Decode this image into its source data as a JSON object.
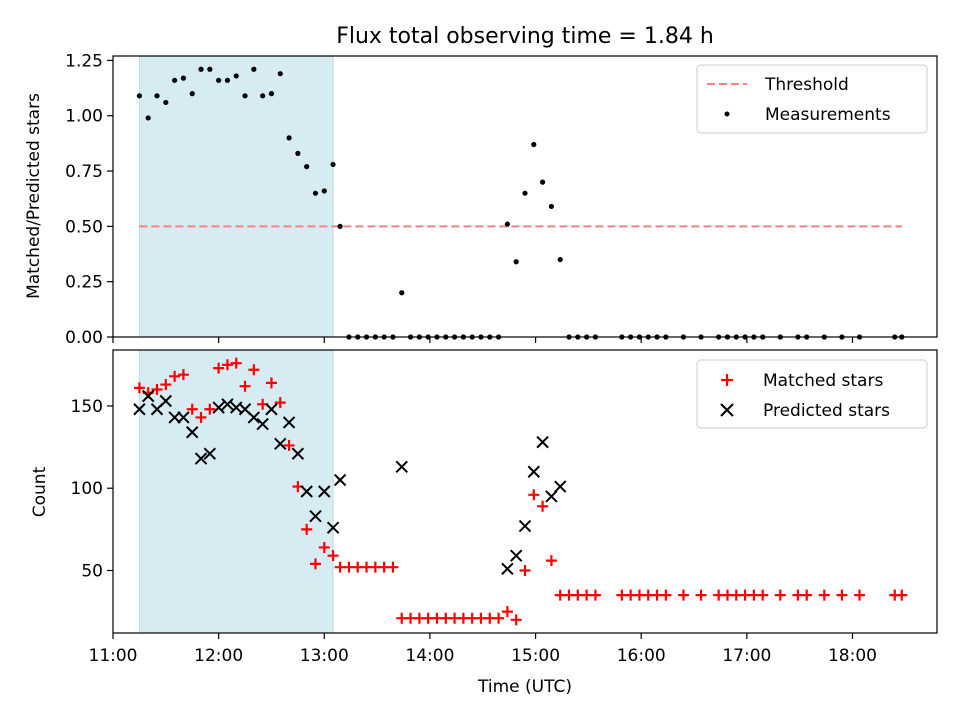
{
  "chart_data": [
    {
      "type": "scatter",
      "title": "Flux total observing time = 1.84 h",
      "xlabel": "",
      "ylabel": "Matched/Predicted stars",
      "xlim": [
        "11:00",
        "18:48"
      ],
      "ylim": [
        0,
        1.27
      ],
      "y_ticks": [
        "0.00",
        "0.25",
        "0.50",
        "0.75",
        "1.00",
        "1.25"
      ],
      "legend_position": "top-right",
      "shaded_span": {
        "x0": "11:15",
        "x1": "13:05",
        "color": "#add8e6"
      },
      "threshold": {
        "name": "Threshold",
        "y": 0.5,
        "x0": "11:15",
        "x1": "18:28",
        "color": "#ff7f7f",
        "style": "dashed"
      },
      "series": [
        {
          "name": "Measurements",
          "marker": "dot",
          "color": "#000000",
          "points": [
            [
              "11:15",
              1.09
            ],
            [
              "11:20",
              0.99
            ],
            [
              "11:25",
              1.09
            ],
            [
              "11:30",
              1.06
            ],
            [
              "11:35",
              1.16
            ],
            [
              "11:40",
              1.17
            ],
            [
              "11:45",
              1.1
            ],
            [
              "11:50",
              1.21
            ],
            [
              "11:55",
              1.21
            ],
            [
              "12:00",
              1.16
            ],
            [
              "12:05",
              1.16
            ],
            [
              "12:10",
              1.18
            ],
            [
              "12:15",
              1.09
            ],
            [
              "12:20",
              1.21
            ],
            [
              "12:25",
              1.09
            ],
            [
              "12:30",
              1.1
            ],
            [
              "12:35",
              1.19
            ],
            [
              "12:40",
              0.9
            ],
            [
              "12:45",
              0.83
            ],
            [
              "12:50",
              0.77
            ],
            [
              "12:55",
              0.65
            ],
            [
              "13:00",
              0.66
            ],
            [
              "13:05",
              0.78
            ],
            [
              "13:09",
              0.5
            ],
            [
              "13:14",
              0.0
            ],
            [
              "13:19",
              0.0
            ],
            [
              "13:24",
              0.0
            ],
            [
              "13:29",
              0.0
            ],
            [
              "13:34",
              0.0
            ],
            [
              "13:39",
              0.0
            ],
            [
              "13:44",
              0.2
            ],
            [
              "13:49",
              0.0
            ],
            [
              "13:54",
              0.0
            ],
            [
              "13:59",
              0.0
            ],
            [
              "14:04",
              0.0
            ],
            [
              "14:09",
              0.0
            ],
            [
              "14:14",
              0.0
            ],
            [
              "14:19",
              0.0
            ],
            [
              "14:24",
              0.0
            ],
            [
              "14:29",
              0.0
            ],
            [
              "14:34",
              0.0
            ],
            [
              "14:39",
              0.0
            ],
            [
              "14:44",
              0.51
            ],
            [
              "14:49",
              0.34
            ],
            [
              "14:54",
              0.65
            ],
            [
              "14:59",
              0.87
            ],
            [
              "15:04",
              0.7
            ],
            [
              "15:09",
              0.59
            ],
            [
              "15:14",
              0.35
            ],
            [
              "15:19",
              0.0
            ],
            [
              "15:24",
              0.0
            ],
            [
              "15:29",
              0.0
            ],
            [
              "15:34",
              0.0
            ],
            [
              "15:49",
              0.0
            ],
            [
              "15:54",
              0.0
            ],
            [
              "15:59",
              0.0
            ],
            [
              "16:04",
              0.0
            ],
            [
              "16:09",
              0.0
            ],
            [
              "16:14",
              0.0
            ],
            [
              "16:24",
              0.0
            ],
            [
              "16:34",
              0.0
            ],
            [
              "16:44",
              0.0
            ],
            [
              "16:49",
              0.0
            ],
            [
              "16:54",
              0.0
            ],
            [
              "16:59",
              0.0
            ],
            [
              "17:04",
              0.0
            ],
            [
              "17:09",
              0.0
            ],
            [
              "17:19",
              0.0
            ],
            [
              "17:29",
              0.0
            ],
            [
              "17:34",
              0.0
            ],
            [
              "17:44",
              0.0
            ],
            [
              "17:54",
              0.0
            ],
            [
              "18:04",
              0.0
            ],
            [
              "18:24",
              0.0
            ],
            [
              "18:28",
              0.0
            ]
          ]
        }
      ]
    },
    {
      "type": "scatter",
      "title": "",
      "xlabel": "Time (UTC)",
      "ylabel": "Count",
      "xlim": [
        "11:00",
        "18:48"
      ],
      "ylim": [
        12,
        184
      ],
      "x_ticks": [
        "11:00",
        "12:00",
        "13:00",
        "14:00",
        "15:00",
        "16:00",
        "17:00",
        "18:00"
      ],
      "y_ticks": [
        "50",
        "100",
        "150"
      ],
      "legend_position": "top-right",
      "shaded_span": {
        "x0": "11:15",
        "x1": "13:05",
        "color": "#add8e6"
      },
      "series": [
        {
          "name": "Matched stars",
          "marker": "plus",
          "color": "#ff0000",
          "points": [
            [
              "11:15",
              161
            ],
            [
              "11:20",
              158
            ],
            [
              "11:25",
              160
            ],
            [
              "11:30",
              163
            ],
            [
              "11:35",
              168
            ],
            [
              "11:40",
              169
            ],
            [
              "11:45",
              148
            ],
            [
              "11:50",
              143
            ],
            [
              "11:55",
              148
            ],
            [
              "12:00",
              173
            ],
            [
              "12:05",
              175
            ],
            [
              "12:10",
              176
            ],
            [
              "12:15",
              162
            ],
            [
              "12:20",
              172
            ],
            [
              "12:25",
              151
            ],
            [
              "12:30",
              164
            ],
            [
              "12:35",
              152
            ],
            [
              "12:40",
              126
            ],
            [
              "12:45",
              101
            ],
            [
              "12:50",
              75
            ],
            [
              "12:55",
              54
            ],
            [
              "13:00",
              64
            ],
            [
              "13:05",
              59
            ],
            [
              "13:09",
              52
            ],
            [
              "13:14",
              52
            ],
            [
              "13:19",
              52
            ],
            [
              "13:24",
              52
            ],
            [
              "13:29",
              52
            ],
            [
              "13:34",
              52
            ],
            [
              "13:39",
              52
            ],
            [
              "13:44",
              21
            ],
            [
              "13:49",
              21
            ],
            [
              "13:54",
              21
            ],
            [
              "13:59",
              21
            ],
            [
              "14:04",
              21
            ],
            [
              "14:09",
              21
            ],
            [
              "14:14",
              21
            ],
            [
              "14:19",
              21
            ],
            [
              "14:24",
              21
            ],
            [
              "14:29",
              21
            ],
            [
              "14:34",
              21
            ],
            [
              "14:39",
              21
            ],
            [
              "14:44",
              25
            ],
            [
              "14:49",
              20
            ],
            [
              "14:54",
              50
            ],
            [
              "14:59",
              96
            ],
            [
              "15:04",
              89
            ],
            [
              "15:09",
              56
            ],
            [
              "15:14",
              35
            ],
            [
              "15:19",
              35
            ],
            [
              "15:24",
              35
            ],
            [
              "15:29",
              35
            ],
            [
              "15:34",
              35
            ],
            [
              "15:49",
              35
            ],
            [
              "15:54",
              35
            ],
            [
              "15:59",
              35
            ],
            [
              "16:04",
              35
            ],
            [
              "16:09",
              35
            ],
            [
              "16:14",
              35
            ],
            [
              "16:24",
              35
            ],
            [
              "16:34",
              35
            ],
            [
              "16:44",
              35
            ],
            [
              "16:49",
              35
            ],
            [
              "16:54",
              35
            ],
            [
              "16:59",
              35
            ],
            [
              "17:04",
              35
            ],
            [
              "17:09",
              35
            ],
            [
              "17:19",
              35
            ],
            [
              "17:29",
              35
            ],
            [
              "17:34",
              35
            ],
            [
              "17:44",
              35
            ],
            [
              "17:54",
              35
            ],
            [
              "18:04",
              35
            ],
            [
              "18:24",
              35
            ],
            [
              "18:28",
              35
            ]
          ]
        },
        {
          "name": "Predicted stars",
          "marker": "x",
          "color": "#000000",
          "points": [
            [
              "11:15",
              148
            ],
            [
              "11:20",
              156
            ],
            [
              "11:25",
              148
            ],
            [
              "11:30",
              153
            ],
            [
              "11:35",
              143
            ],
            [
              "11:40",
              143
            ],
            [
              "11:45",
              134
            ],
            [
              "11:50",
              118
            ],
            [
              "11:55",
              121
            ],
            [
              "12:00",
              149
            ],
            [
              "12:05",
              151
            ],
            [
              "12:10",
              149
            ],
            [
              "12:15",
              148
            ],
            [
              "12:20",
              143
            ],
            [
              "12:25",
              139
            ],
            [
              "12:30",
              148
            ],
            [
              "12:35",
              127
            ],
            [
              "12:40",
              140
            ],
            [
              "12:45",
              121
            ],
            [
              "12:50",
              98
            ],
            [
              "12:55",
              83
            ],
            [
              "13:00",
              98
            ],
            [
              "13:05",
              76
            ],
            [
              "13:09",
              105
            ],
            [
              "13:44",
              113
            ],
            [
              "14:44",
              51
            ],
            [
              "14:49",
              59
            ],
            [
              "14:54",
              77
            ],
            [
              "14:59",
              110
            ],
            [
              "15:04",
              128
            ],
            [
              "15:09",
              95
            ],
            [
              "15:14",
              101
            ]
          ]
        }
      ]
    }
  ]
}
